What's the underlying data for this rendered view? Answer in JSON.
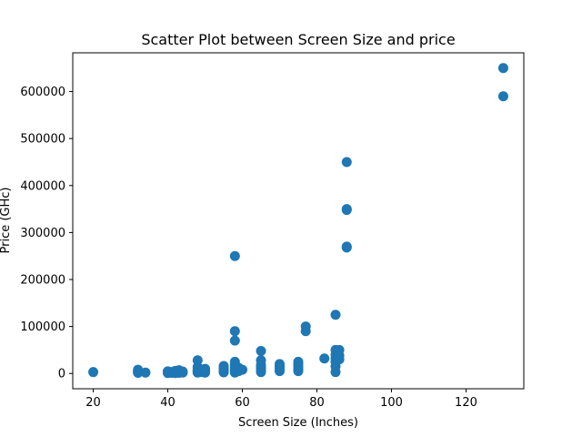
{
  "chart_data": {
    "type": "scatter",
    "title": "Scatter  Plot between Screen Size and price",
    "xlabel": "Screen Size (Inches)",
    "ylabel": "Price (GHc)",
    "xlim": [
      14.5,
      135.5
    ],
    "ylim": [
      -32500,
      682500
    ],
    "xticks": [
      20,
      40,
      60,
      80,
      100,
      120
    ],
    "yticks": [
      0,
      100000,
      200000,
      300000,
      400000,
      500000,
      600000
    ],
    "grid": false,
    "marker_color": "#1f77b4",
    "points": [
      [
        20,
        3000
      ],
      [
        32,
        1500
      ],
      [
        32,
        3000
      ],
      [
        32,
        5000
      ],
      [
        32,
        8000
      ],
      [
        34,
        2000
      ],
      [
        40,
        1000
      ],
      [
        40,
        2500
      ],
      [
        40,
        3500
      ],
      [
        40,
        4500
      ],
      [
        41,
        1500
      ],
      [
        41,
        3000
      ],
      [
        42,
        1000
      ],
      [
        42,
        2500
      ],
      [
        42,
        4000
      ],
      [
        42,
        5500
      ],
      [
        43,
        1500
      ],
      [
        43,
        3500
      ],
      [
        43,
        5000
      ],
      [
        43,
        7000
      ],
      [
        44,
        2000
      ],
      [
        44,
        4000
      ],
      [
        48,
        2000
      ],
      [
        48,
        4000
      ],
      [
        48,
        6000
      ],
      [
        48,
        9000
      ],
      [
        48,
        14000
      ],
      [
        48,
        28000
      ],
      [
        49,
        3000
      ],
      [
        49,
        7000
      ],
      [
        50,
        2000
      ],
      [
        50,
        4500
      ],
      [
        50,
        7000
      ],
      [
        50,
        10000
      ],
      [
        55,
        2500
      ],
      [
        55,
        5000
      ],
      [
        55,
        8000
      ],
      [
        55,
        12000
      ],
      [
        55,
        16000
      ],
      [
        58,
        2000
      ],
      [
        58,
        5000
      ],
      [
        58,
        8000
      ],
      [
        58,
        12000
      ],
      [
        58,
        18000
      ],
      [
        58,
        25000
      ],
      [
        58,
        70000
      ],
      [
        58,
        90000
      ],
      [
        58,
        250000
      ],
      [
        59,
        5000
      ],
      [
        59,
        12000
      ],
      [
        60,
        8000
      ],
      [
        65,
        3000
      ],
      [
        65,
        7000
      ],
      [
        65,
        12000
      ],
      [
        65,
        18000
      ],
      [
        65,
        28000
      ],
      [
        65,
        48000
      ],
      [
        70,
        5000
      ],
      [
        70,
        10000
      ],
      [
        70,
        15000
      ],
      [
        70,
        20000
      ],
      [
        75,
        5000
      ],
      [
        75,
        9000
      ],
      [
        75,
        14000
      ],
      [
        75,
        19000
      ],
      [
        75,
        25000
      ],
      [
        77,
        90000
      ],
      [
        77,
        100000
      ],
      [
        82,
        32000
      ],
      [
        85,
        3000
      ],
      [
        85,
        15000
      ],
      [
        85,
        25000
      ],
      [
        85,
        32000
      ],
      [
        85,
        40000
      ],
      [
        85,
        50000
      ],
      [
        85,
        125000
      ],
      [
        86,
        30000
      ],
      [
        86,
        38000
      ],
      [
        86,
        50000
      ],
      [
        88,
        268000
      ],
      [
        88,
        270000
      ],
      [
        88,
        348000
      ],
      [
        88,
        350000
      ],
      [
        88,
        450000
      ],
      [
        130,
        590000
      ],
      [
        130,
        650000
      ]
    ]
  }
}
